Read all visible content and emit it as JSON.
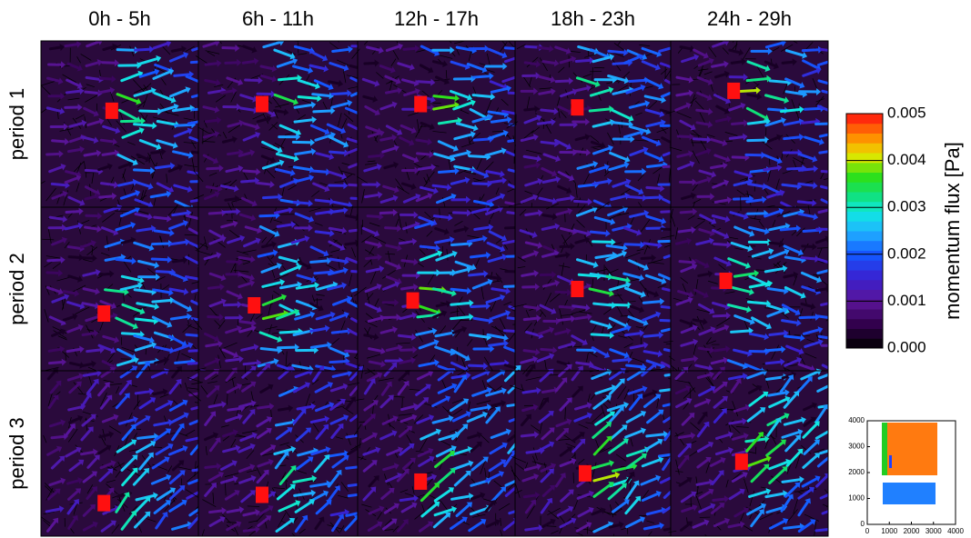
{
  "columns": [
    "0h - 5h",
    "6h - 11h",
    "12h - 17h",
    "18h - 23h",
    "24h - 29h"
  ],
  "rows": [
    "period 1",
    "period 2",
    "period 3"
  ],
  "colorbar": {
    "label": "momentum flux [Pa]",
    "lim": [
      0,
      0.005
    ],
    "ticks": [
      {
        "value": 0,
        "label": "0.000"
      },
      0.001,
      0.002,
      0.003,
      0.004,
      0.005
    ]
  },
  "inset": {
    "xlim": [
      0,
      4000
    ],
    "ylim": [
      0,
      4000
    ],
    "xticks": [
      0,
      1000,
      2000,
      3000,
      4000
    ],
    "yticks": [
      0,
      1000,
      2000,
      3000,
      4000
    ]
  }
}
